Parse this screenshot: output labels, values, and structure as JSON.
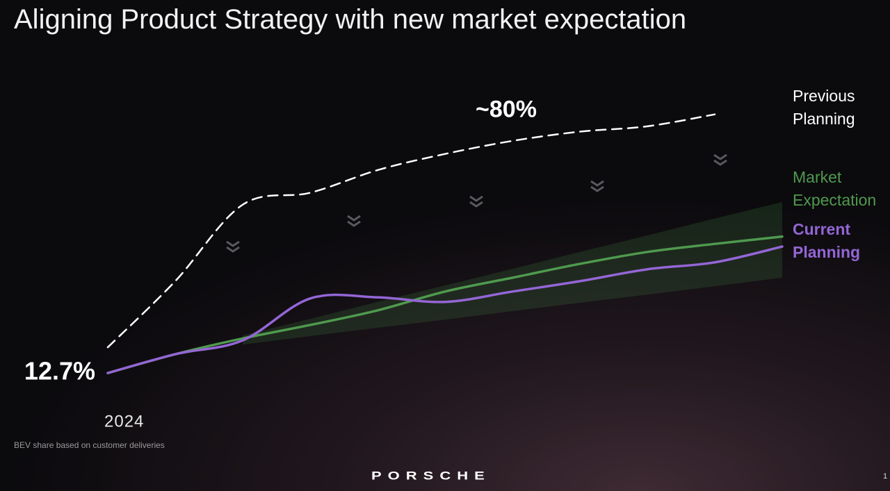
{
  "chart_data": {
    "type": "line",
    "title": "Aligning Product Strategy with new market expectation",
    "categories": [
      "2024",
      null,
      null,
      null,
      null,
      null,
      null,
      null,
      null,
      null,
      null
    ],
    "series": [
      {
        "name": "Previous Planning",
        "color": "#ffffff",
        "dashed": true,
        "values": [
          19.4,
          36.6,
          56.5,
          59.6,
          65.5,
          69.7,
          73.1,
          75.5,
          76.9,
          80,
          null
        ],
        "value_labels": [
          null,
          null,
          null,
          null,
          null,
          null,
          null,
          null,
          null,
          "~80%",
          null
        ]
      },
      {
        "name": "Market Expectation",
        "color": "#4f9a4e",
        "values": [
          12.7,
          17.6,
          21.7,
          25.2,
          29.0,
          33.9,
          37.5,
          41.1,
          44.2,
          46.3,
          48.2
        ],
        "range": {
          "lower": [
            null,
            null,
            20.1,
            22.3,
            24.5,
            26.6,
            28.8,
            31.0,
            33.1,
            35.3,
            37.5
          ],
          "upper": [
            null,
            null,
            22.5,
            26.8,
            31.2,
            35.5,
            39.8,
            44.2,
            48.5,
            52.9,
            57.2
          ]
        }
      },
      {
        "name": "Current Planning",
        "color": "#9466d6",
        "bold": true,
        "values": [
          12.7,
          17.6,
          21.2,
          32.1,
          32.4,
          31.2,
          33.9,
          36.6,
          39.7,
          41.5,
          45.6
        ],
        "value_labels": [
          "12.7%",
          null,
          null,
          null,
          null,
          null,
          null,
          null,
          null,
          null,
          null
        ]
      }
    ],
    "ylim": [
      5.5,
      85
    ],
    "footnote": "BEV share based on customer deliveries",
    "brand": "PORSCHE",
    "page": "1"
  }
}
